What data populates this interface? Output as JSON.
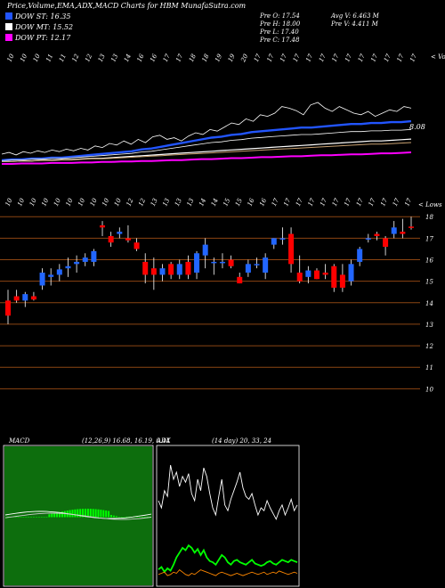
{
  "header": {
    "title": "Price,Volume,EMA,ADX,MACD Charts for HBM MunafaSutra.com",
    "legend": [
      {
        "label": "DOW ST: 16.35",
        "color": "#2255ff"
      },
      {
        "label": "DOW MT: 15.52",
        "color": "#ffffff"
      },
      {
        "label": "DOW PT: 12.17",
        "color": "#ff00ff"
      }
    ],
    "ohlc": [
      [
        "Pre  O: 17.54",
        "Avg V: 6.463 M"
      ],
      [
        "Pre  H: 18.00",
        "Pre  V: 4.411 M"
      ],
      [
        "Pre  L: 17.40",
        ""
      ],
      [
        "Pre  C: 17.48",
        ""
      ]
    ]
  },
  "colors": {
    "up": "#2266ff",
    "down": "#ff0000",
    "grid": "#8b4513",
    "volume": "#ffffff",
    "st": "#2255ff",
    "mt": "#ffffff",
    "pt": "#ff00ff",
    "adx_di_plus": "#00ff00",
    "adx_di_minus": "#ff8800",
    "macd_hist": "#00ff00"
  },
  "volume_panel": {
    "tag": "< Vo",
    "price_label": "8.08",
    "date_labels": [
      "10",
      "10",
      "10",
      "11",
      "11",
      "12",
      "12",
      "13",
      "13",
      "14",
      "16",
      "16",
      "17",
      "17",
      "18",
      "18",
      "19",
      "19",
      "20",
      "17",
      "17",
      "17",
      "17",
      "17",
      "17",
      "17",
      "17",
      "17",
      "17",
      "17",
      "17",
      "17"
    ]
  },
  "price_panel": {
    "tag": "< Lows",
    "date_labels": [
      "10",
      "10",
      "10",
      "10",
      "10",
      "10",
      "10",
      "10",
      "10",
      "10",
      "12",
      "12",
      "13",
      "13",
      "13",
      "13",
      "14",
      "14",
      "15",
      "15",
      "16",
      "16",
      "17",
      "17",
      "17",
      "17",
      "17",
      "17",
      "17",
      "17",
      "17",
      "17",
      "17",
      "17"
    ]
  },
  "macd_panel": {
    "label": "MACD",
    "params": "(12,26,9) 16.68, 16.19, 0.44"
  },
  "adx_panel": {
    "label": "ADX",
    "params": "(14 day) 20, 33, 24"
  },
  "chart_data": {
    "type": "candlestick",
    "yticks": [
      18,
      17,
      16,
      15,
      14,
      13,
      12,
      11,
      10
    ],
    "ylim": [
      9.6,
      18.3
    ],
    "candles": [
      {
        "o": 14.1,
        "h": 14.6,
        "l": 13.0,
        "c": 13.4
      },
      {
        "o": 14.3,
        "h": 14.6,
        "l": 14.0,
        "c": 14.1
      },
      {
        "o": 14.1,
        "h": 14.5,
        "l": 13.8,
        "c": 14.4
      },
      {
        "o": 14.3,
        "h": 14.5,
        "l": 14.1,
        "c": 14.15
      },
      {
        "o": 14.8,
        "h": 15.6,
        "l": 14.6,
        "c": 15.4
      },
      {
        "o": 15.2,
        "h": 15.6,
        "l": 14.8,
        "c": 15.3
      },
      {
        "o": 15.3,
        "h": 15.8,
        "l": 15.0,
        "c": 15.55
      },
      {
        "o": 15.6,
        "h": 16.1,
        "l": 15.2,
        "c": 15.7
      },
      {
        "o": 15.8,
        "h": 16.2,
        "l": 15.4,
        "c": 15.9
      },
      {
        "o": 15.9,
        "h": 16.3,
        "l": 15.7,
        "c": 16.1
      },
      {
        "o": 15.9,
        "h": 16.5,
        "l": 15.7,
        "c": 16.4
      },
      {
        "o": 17.6,
        "h": 17.8,
        "l": 17.1,
        "c": 17.5
      },
      {
        "o": 17.1,
        "h": 17.3,
        "l": 16.6,
        "c": 16.8
      },
      {
        "o": 17.2,
        "h": 17.5,
        "l": 17.0,
        "c": 17.3
      },
      {
        "o": 17.0,
        "h": 17.6,
        "l": 16.8,
        "c": 16.9
      },
      {
        "o": 16.8,
        "h": 17.0,
        "l": 16.4,
        "c": 16.5
      },
      {
        "o": 15.9,
        "h": 16.3,
        "l": 14.9,
        "c": 15.3
      },
      {
        "o": 15.6,
        "h": 16.1,
        "l": 14.6,
        "c": 15.3
      },
      {
        "o": 15.3,
        "h": 15.8,
        "l": 15.0,
        "c": 15.6
      },
      {
        "o": 15.8,
        "h": 15.9,
        "l": 15.1,
        "c": 15.3
      },
      {
        "o": 15.3,
        "h": 16.0,
        "l": 15.1,
        "c": 15.8
      },
      {
        "o": 15.9,
        "h": 16.2,
        "l": 15.1,
        "c": 15.3
      },
      {
        "o": 15.4,
        "h": 16.4,
        "l": 15.1,
        "c": 16.3
      },
      {
        "o": 16.2,
        "h": 17.0,
        "l": 15.6,
        "c": 16.7
      },
      {
        "o": 15.9,
        "h": 16.1,
        "l": 15.3,
        "c": 15.9
      },
      {
        "o": 15.9,
        "h": 16.3,
        "l": 15.6,
        "c": 15.9
      },
      {
        "o": 16.0,
        "h": 16.2,
        "l": 15.6,
        "c": 15.7
      },
      {
        "o": 15.2,
        "h": 15.4,
        "l": 14.9,
        "c": 14.9
      },
      {
        "o": 15.4,
        "h": 16.0,
        "l": 15.2,
        "c": 15.8
      },
      {
        "o": 15.8,
        "h": 16.1,
        "l": 15.6,
        "c": 15.8
      },
      {
        "o": 15.4,
        "h": 16.3,
        "l": 15.1,
        "c": 16.1
      },
      {
        "o": 16.7,
        "h": 17.0,
        "l": 16.5,
        "c": 17.0
      },
      {
        "o": 17.0,
        "h": 17.5,
        "l": 16.7,
        "c": 17.0
      },
      {
        "o": 17.2,
        "h": 17.5,
        "l": 15.4,
        "c": 15.8
      },
      {
        "o": 15.4,
        "h": 16.2,
        "l": 14.9,
        "c": 15.0
      },
      {
        "o": 15.2,
        "h": 15.7,
        "l": 14.9,
        "c": 15.5
      },
      {
        "o": 15.5,
        "h": 15.6,
        "l": 15.1,
        "c": 15.1
      },
      {
        "o": 15.4,
        "h": 15.8,
        "l": 15.1,
        "c": 15.3
      },
      {
        "o": 15.7,
        "h": 15.8,
        "l": 14.5,
        "c": 14.7
      },
      {
        "o": 15.3,
        "h": 15.8,
        "l": 14.5,
        "c": 14.7
      },
      {
        "o": 15.0,
        "h": 16.0,
        "l": 14.8,
        "c": 15.8
      },
      {
        "o": 15.9,
        "h": 16.6,
        "l": 15.7,
        "c": 16.5
      },
      {
        "o": 17.0,
        "h": 17.2,
        "l": 16.8,
        "c": 17.0
      },
      {
        "o": 17.2,
        "h": 17.3,
        "l": 16.9,
        "c": 17.1
      },
      {
        "o": 17.0,
        "h": 17.1,
        "l": 16.2,
        "c": 16.6
      },
      {
        "o": 17.2,
        "h": 17.8,
        "l": 17.0,
        "c": 17.5
      },
      {
        "o": 17.3,
        "h": 17.9,
        "l": 17.0,
        "c": 17.2
      },
      {
        "o": 17.54,
        "h": 18.0,
        "l": 17.4,
        "c": 17.48
      }
    ],
    "volume_line": [
      12,
      14,
      11,
      15,
      13,
      16,
      14,
      17,
      15,
      18,
      16,
      19,
      17,
      22,
      20,
      25,
      23,
      28,
      24,
      30,
      26,
      33,
      35,
      30,
      32,
      28,
      34,
      38,
      36,
      42,
      40,
      45,
      50,
      48,
      55,
      52,
      60,
      58,
      62,
      70,
      68,
      65,
      60,
      72,
      75,
      68,
      64,
      70,
      66,
      62,
      60,
      64,
      58,
      62,
      66,
      64,
      70,
      68
    ],
    "ema_volume_lines": {
      "st": [
        2,
        3,
        3,
        4,
        4,
        5,
        5,
        6,
        7,
        8,
        9,
        10,
        11,
        12,
        14,
        15,
        17,
        19,
        21,
        23,
        25,
        27,
        28,
        30,
        31,
        33,
        34,
        35,
        36,
        37,
        38,
        38,
        39,
        40,
        41,
        42,
        42,
        43,
        43,
        44,
        44,
        45
      ],
      "mt": [
        1,
        1,
        2,
        2,
        3,
        3,
        4,
        4,
        5,
        6,
        6,
        7,
        8,
        9,
        10,
        11,
        12,
        13,
        14,
        15,
        16,
        17,
        18,
        19,
        20,
        21,
        22,
        23,
        24,
        25,
        26,
        27,
        28,
        29,
        30,
        31,
        32,
        33,
        33,
        34,
        35,
        36
      ],
      "pt": [
        0,
        0,
        1,
        1,
        1,
        2,
        2,
        2,
        3,
        3,
        4,
        4,
        5,
        5,
        6,
        6,
        7,
        8,
        8,
        9,
        10,
        10,
        11,
        12,
        12,
        13,
        14,
        14,
        15,
        16,
        16,
        17,
        18,
        18,
        19,
        20,
        20,
        21,
        22,
        22,
        23,
        24
      ]
    },
    "macd": {
      "macd": 16.68,
      "signal": 16.19,
      "histogram": 0.44
    },
    "adx": {
      "adx": 20,
      "di_plus": 33,
      "di_minus": 24,
      "white": [
        55,
        50,
        62,
        58,
        80,
        70,
        75,
        65,
        72,
        68,
        74,
        60,
        55,
        70,
        62,
        78,
        72,
        60,
        50,
        45,
        58,
        70,
        52,
        48,
        56,
        62,
        68,
        75,
        64,
        58,
        56,
        60,
        52,
        45,
        50,
        48,
        55,
        50,
        46,
        42,
        48,
        52,
        45,
        50,
        56,
        48,
        52
      ],
      "green": [
        8,
        10,
        6,
        9,
        7,
        12,
        18,
        22,
        26,
        24,
        28,
        26,
        22,
        25,
        20,
        24,
        18,
        15,
        14,
        12,
        16,
        20,
        18,
        14,
        12,
        15,
        16,
        14,
        13,
        12,
        14,
        16,
        13,
        12,
        11,
        12,
        14,
        15,
        13,
        12,
        14,
        16,
        15,
        14,
        16,
        15,
        14
      ],
      "orange": [
        4,
        5,
        6,
        3,
        4,
        6,
        5,
        8,
        6,
        4,
        3,
        5,
        4,
        6,
        8,
        7,
        6,
        5,
        4,
        3,
        5,
        6,
        5,
        4,
        3,
        4,
        5,
        4,
        3,
        4,
        5,
        6,
        5,
        4,
        5,
        6,
        4,
        5,
        6,
        5,
        7,
        6,
        5,
        4,
        5,
        6,
        5
      ]
    }
  }
}
